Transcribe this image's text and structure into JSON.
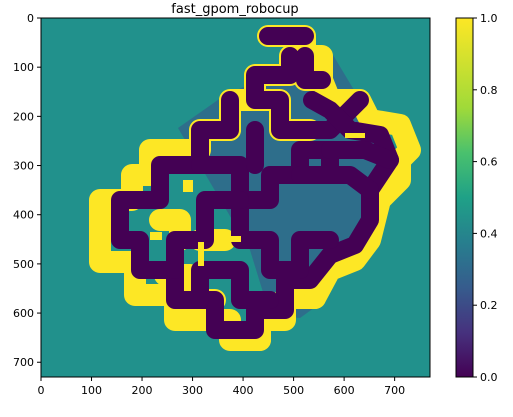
{
  "chart_data": {
    "type": "heatmap",
    "title": "fast_gpom_robocup",
    "xlabel": "",
    "ylabel": "",
    "xlim": [
      0,
      770
    ],
    "ylim": [
      730,
      0
    ],
    "x_ticks": [
      0,
      100,
      200,
      300,
      400,
      500,
      600,
      700
    ],
    "y_ticks": [
      0,
      100,
      200,
      300,
      400,
      500,
      600,
      700
    ],
    "colormap": "viridis",
    "colorbar": {
      "range": [
        0,
        1
      ],
      "ticks": [
        "0.0",
        "0.2",
        "0.4",
        "0.6",
        "0.8",
        "1.0"
      ]
    },
    "regions": {
      "unknown_value": 0.5,
      "free_value": 0.0,
      "occupied_value": 1.0
    },
    "colors": {
      "unknown": "#21918c",
      "free": "#440154",
      "occupied": "#fde725",
      "slope": "#3b528b"
    }
  }
}
